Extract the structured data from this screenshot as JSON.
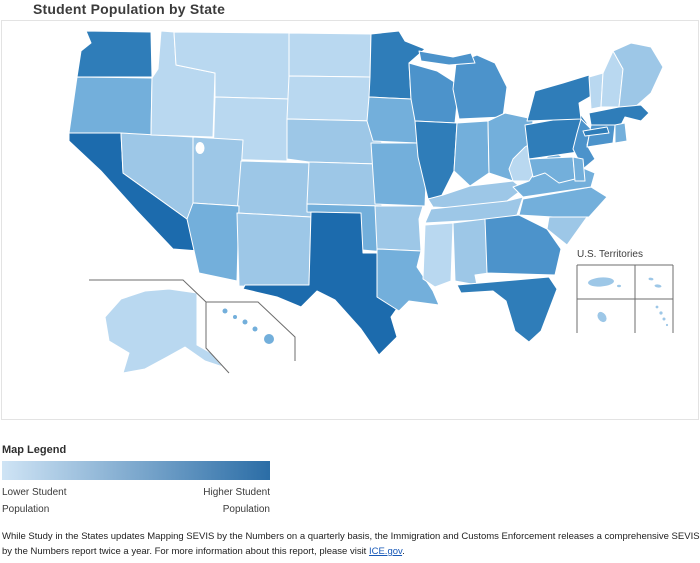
{
  "page": {
    "title": "Student Population by State"
  },
  "map": {
    "palette": {
      "1": "#b9d8f0",
      "2": "#9dc7e7",
      "3": "#73afdb",
      "4": "#4c93cb",
      "5": "#2f7db9",
      "6": "#1c6bad"
    },
    "border_color": "#ffffff",
    "states": [
      {
        "code": "WA",
        "name": "Washington",
        "level": 5
      },
      {
        "code": "OR",
        "name": "Oregon",
        "level": 3
      },
      {
        "code": "CA",
        "name": "California",
        "level": 6
      },
      {
        "code": "NV",
        "name": "Nevada",
        "level": 2
      },
      {
        "code": "ID",
        "name": "Idaho",
        "level": 1
      },
      {
        "code": "MT",
        "name": "Montana",
        "level": 1
      },
      {
        "code": "WY",
        "name": "Wyoming",
        "level": 1
      },
      {
        "code": "UT",
        "name": "Utah",
        "level": 2
      },
      {
        "code": "CO",
        "name": "Colorado",
        "level": 2
      },
      {
        "code": "AZ",
        "name": "Arizona",
        "level": 3
      },
      {
        "code": "NM",
        "name": "New Mexico",
        "level": 2
      },
      {
        "code": "ND",
        "name": "North Dakota",
        "level": 1
      },
      {
        "code": "SD",
        "name": "South Dakota",
        "level": 1
      },
      {
        "code": "NE",
        "name": "Nebraska",
        "level": 2
      },
      {
        "code": "KS",
        "name": "Kansas",
        "level": 2
      },
      {
        "code": "OK",
        "name": "Oklahoma",
        "level": 3
      },
      {
        "code": "TX",
        "name": "Texas",
        "level": 6
      },
      {
        "code": "MN",
        "name": "Minnesota",
        "level": 5
      },
      {
        "code": "IA",
        "name": "Iowa",
        "level": 3
      },
      {
        "code": "MO",
        "name": "Missouri",
        "level": 3
      },
      {
        "code": "AR",
        "name": "Arkansas",
        "level": 2
      },
      {
        "code": "LA",
        "name": "Louisiana",
        "level": 3
      },
      {
        "code": "WI",
        "name": "Wisconsin",
        "level": 4
      },
      {
        "code": "IL",
        "name": "Illinois",
        "level": 5
      },
      {
        "code": "MI",
        "name": "Michigan",
        "level": 4
      },
      {
        "code": "IN",
        "name": "Indiana",
        "level": 3
      },
      {
        "code": "OH",
        "name": "Ohio",
        "level": 3
      },
      {
        "code": "KY",
        "name": "Kentucky",
        "level": 2
      },
      {
        "code": "TN",
        "name": "Tennessee",
        "level": 2
      },
      {
        "code": "MS",
        "name": "Mississippi",
        "level": 1
      },
      {
        "code": "AL",
        "name": "Alabama",
        "level": 2
      },
      {
        "code": "GA",
        "name": "Georgia",
        "level": 4
      },
      {
        "code": "FL",
        "name": "Florida",
        "level": 5
      },
      {
        "code": "SC",
        "name": "South Carolina",
        "level": 2
      },
      {
        "code": "NC",
        "name": "North Carolina",
        "level": 3
      },
      {
        "code": "VA",
        "name": "Virginia",
        "level": 3
      },
      {
        "code": "WV",
        "name": "West Virginia",
        "level": 1
      },
      {
        "code": "PA",
        "name": "Pennsylvania",
        "level": 5
      },
      {
        "code": "NY",
        "name": "New York",
        "level": 5
      },
      {
        "code": "NJ",
        "name": "New Jersey",
        "level": 4
      },
      {
        "code": "MD",
        "name": "Maryland",
        "level": 3
      },
      {
        "code": "DE",
        "name": "Delaware",
        "level": 3
      },
      {
        "code": "VT",
        "name": "Vermont",
        "level": 1
      },
      {
        "code": "NH",
        "name": "New Hampshire",
        "level": 1
      },
      {
        "code": "ME",
        "name": "Maine",
        "level": 2
      },
      {
        "code": "MA",
        "name": "Massachusetts",
        "level": 5
      },
      {
        "code": "CT",
        "name": "Connecticut",
        "level": 4
      },
      {
        "code": "RI",
        "name": "Rhode Island",
        "level": 3
      },
      {
        "code": "AK",
        "name": "Alaska",
        "level": 1
      },
      {
        "code": "HI",
        "name": "Hawaii",
        "level": 3
      }
    ],
    "territories": {
      "label": "U.S. Territories",
      "items": [
        {
          "name": "Puerto Rico",
          "level": 2
        },
        {
          "name": "U.S. Virgin Islands",
          "level": 2
        },
        {
          "name": "Guam",
          "level": 2
        },
        {
          "name": "Northern Mariana Islands",
          "level": 2
        }
      ]
    }
  },
  "legend": {
    "title": "Map Legend",
    "low_label": "Lower Student Population",
    "high_label": "Higher Student Population",
    "gradient_start": "#cfe4f5",
    "gradient_end": "#2b6da6"
  },
  "footer": {
    "text_before_link": "While Study in the States updates Mapping SEVIS by the Numbers on a quarterly basis, the Immigration and Customs Enforcement releases a comprehensive SEVIS by the Numbers report twice a year. For more information about this report, please visit ",
    "link_text": "ICE.gov",
    "text_after_link": "."
  }
}
